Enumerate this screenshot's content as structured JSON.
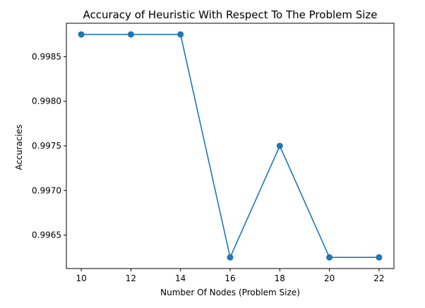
{
  "chart_data": {
    "type": "line",
    "title": "Accuracy of Heuristic With Respect To The Problem Size",
    "xlabel": "Number Of Nodes (Problem Size)",
    "ylabel": "Accuracies",
    "x": [
      10,
      12,
      14,
      16,
      18,
      20,
      22
    ],
    "series": [
      {
        "values": [
          0.99875,
          0.99875,
          0.99875,
          0.99625,
          0.9975,
          0.99625,
          0.99625
        ]
      }
    ],
    "x_ticks": [
      "10",
      "12",
      "14",
      "16",
      "18",
      "20",
      "22"
    ],
    "y_ticks": [
      "0.9965",
      "0.9970",
      "0.9975",
      "0.9980",
      "0.9985"
    ],
    "xlim": [
      9.4,
      22.6
    ],
    "ylim": [
      0.996125,
      0.998875
    ],
    "grid": false,
    "color": "#1f77b4"
  }
}
